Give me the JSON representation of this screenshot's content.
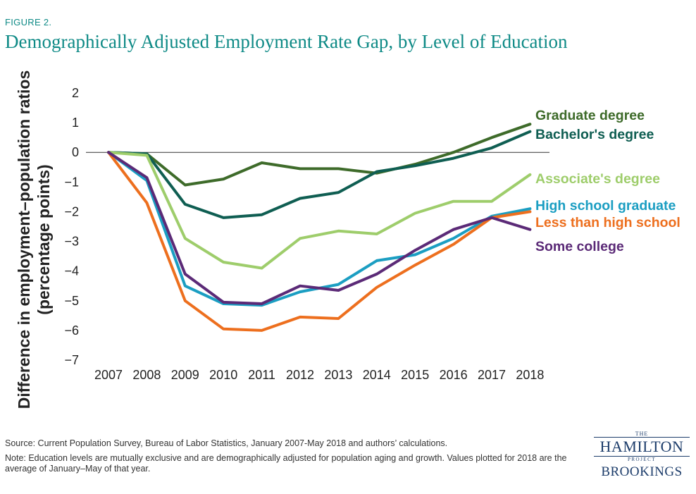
{
  "figure_label": "FIGURE 2.",
  "source": "Source: Current Population Survey, Bureau of Labor Statistics, January 2007-May 2018 and authors’ calculations.",
  "note": "Note: Education levels are mutually exclusive and are demographically adjusted for population aging and growth. Values plotted for 2018 are the average of January–May of that year.",
  "logo": {
    "the": "THE",
    "hamilton": "HAMILTON",
    "project": "PROJECT",
    "brookings": "BROOKINGS"
  },
  "chart_data": {
    "type": "line",
    "title": "Demographically Adjusted Employment Rate Gap, by Level of Education",
    "ylabel_lines": [
      "Difference in employment–population ratios",
      "(percentage points)"
    ],
    "xlabel": "",
    "x": [
      "2007",
      "2008",
      "2009",
      "2010",
      "2011",
      "2012",
      "2013",
      "2014",
      "2015",
      "2016",
      "2017",
      "2018"
    ],
    "ylim": [
      -7,
      2
    ],
    "yticks": [
      2,
      1,
      0,
      -1,
      -2,
      -3,
      -4,
      -5,
      -6,
      -7
    ],
    "ytick_labels": [
      "2",
      "1",
      "0",
      "−1",
      "−2",
      "−3",
      "−4",
      "−5",
      "−6",
      "−7"
    ],
    "zero_line": true,
    "grid": false,
    "legend": "direct labels at right end of each line",
    "series": [
      {
        "name": "Graduate degree",
        "color": "#3e6b2a",
        "values": [
          0,
          -0.05,
          -1.1,
          -0.9,
          -0.35,
          -0.55,
          -0.55,
          -0.7,
          -0.4,
          0,
          0.5,
          0.95
        ]
      },
      {
        "name": "Bachelor's degree",
        "color": "#0f5e52",
        "values": [
          0,
          -0.05,
          -1.75,
          -2.2,
          -2.1,
          -1.55,
          -1.35,
          -0.65,
          -0.45,
          -0.2,
          0.15,
          0.7
        ]
      },
      {
        "name": "Associate's degree",
        "color": "#9ecd6b",
        "values": [
          0,
          -0.1,
          -2.9,
          -3.7,
          -3.9,
          -2.9,
          -2.65,
          -2.75,
          -2.05,
          -1.65,
          -1.65,
          -0.75
        ]
      },
      {
        "name": "High school graduate",
        "color": "#1b9ec2",
        "values": [
          0,
          -0.95,
          -4.5,
          -5.1,
          -5.15,
          -4.7,
          -4.45,
          -3.65,
          -3.45,
          -2.9,
          -2.15,
          -1.9
        ]
      },
      {
        "name": "Less than high school",
        "color": "#ed6f1e",
        "values": [
          0,
          -1.7,
          -5.0,
          -5.95,
          -6.0,
          -5.55,
          -5.6,
          -4.55,
          -3.8,
          -3.1,
          -2.2,
          -2.0
        ]
      },
      {
        "name": "Some college",
        "color": "#5b2a77",
        "values": [
          0,
          -0.85,
          -4.1,
          -5.05,
          -5.1,
          -4.5,
          -4.65,
          -4.1,
          -3.3,
          -2.6,
          -2.2,
          -2.6
        ]
      }
    ]
  }
}
